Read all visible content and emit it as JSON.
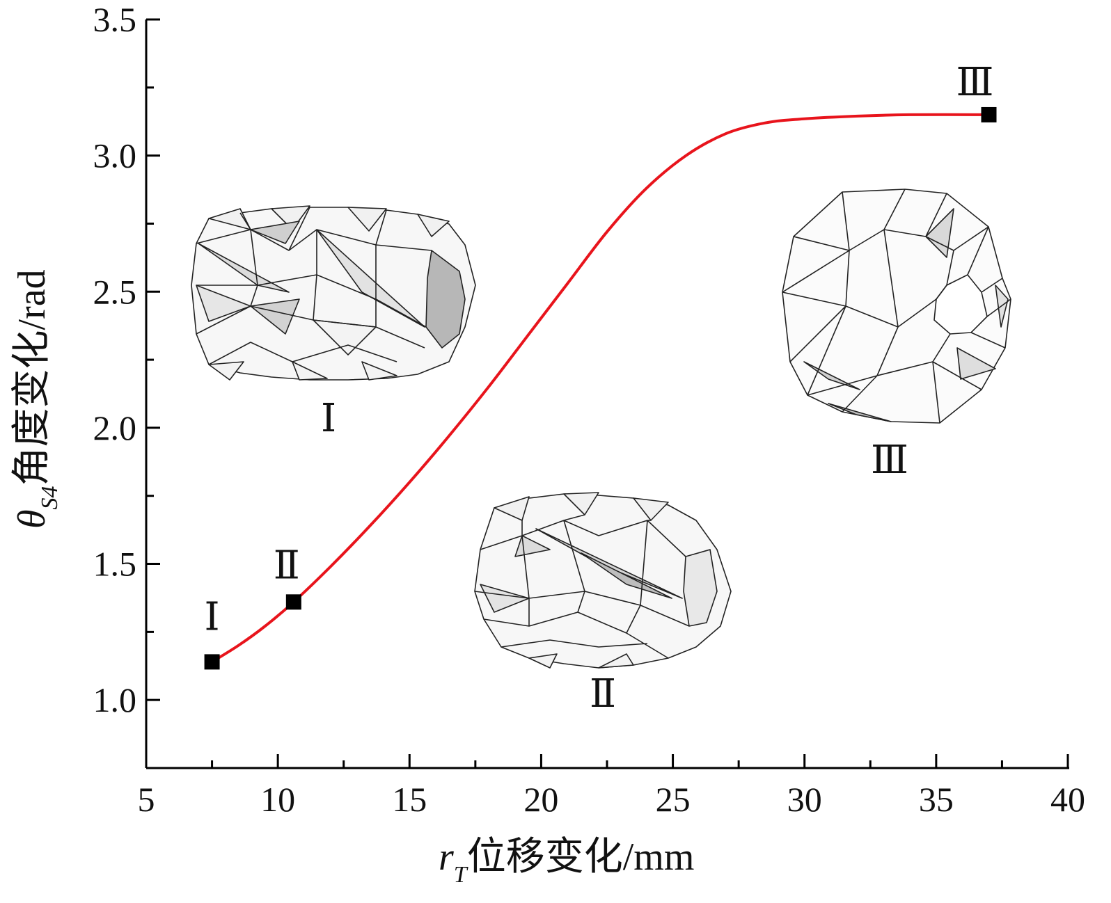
{
  "chart_data": {
    "type": "line",
    "title": "",
    "xlabel": "r_T位移变化/mm",
    "xlabel_parts": {
      "symbol": "r",
      "subscript": "T",
      "text": "位移变化/mm"
    },
    "ylabel": "θ_S4角度变化/rad",
    "ylabel_parts": {
      "symbol": "θ",
      "subscript": "S4",
      "text": "角度变化/rad"
    },
    "xlim": [
      5,
      40
    ],
    "ylim": [
      0.75,
      3.5
    ],
    "xticks": [
      5,
      10,
      15,
      20,
      25,
      30,
      35,
      40
    ],
    "xtick_labels": [
      "5",
      "10",
      "15",
      "20",
      "25",
      "30",
      "35",
      "40"
    ],
    "yticks": [
      1.0,
      1.5,
      2.0,
      2.5,
      3.0,
      3.5
    ],
    "ytick_labels": [
      "1.0",
      "1.5",
      "2.0",
      "2.5",
      "3.0",
      "3.5"
    ],
    "grid": false,
    "series": [
      {
        "color": "#e8141c",
        "x": [
          7.5,
          8.5,
          9.5,
          10.6,
          12,
          13.5,
          15,
          16.5,
          18,
          19.5,
          21,
          22.5,
          24,
          25.5,
          27,
          28.5,
          30,
          32,
          34,
          37
        ],
        "y": [
          1.14,
          1.2,
          1.27,
          1.36,
          1.49,
          1.64,
          1.8,
          1.97,
          2.15,
          2.34,
          2.53,
          2.72,
          2.88,
          3.0,
          3.08,
          3.12,
          3.135,
          3.145,
          3.15,
          3.15
        ]
      }
    ],
    "markers": [
      {
        "label": "Ⅰ",
        "x": 7.5,
        "y": 1.14
      },
      {
        "label": "Ⅱ",
        "x": 10.6,
        "y": 1.36
      },
      {
        "label": "Ⅲ",
        "x": 37.0,
        "y": 3.15
      }
    ],
    "inset_labels": [
      "Ⅰ",
      "Ⅱ",
      "Ⅲ"
    ],
    "colors": {
      "curve": "#e8141c",
      "marker": "#000000",
      "facet_light": "#f6f6f6",
      "facet_mid": "#d7d7d7",
      "facet_dark": "#a9a9a9"
    }
  }
}
